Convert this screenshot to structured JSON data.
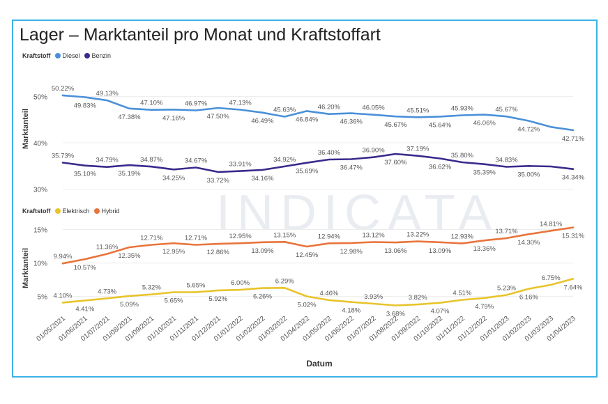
{
  "title": "Lager – Marktanteil pro Monat und Kraftstoffart",
  "xlabel": "Datum",
  "watermark": "INDICATA",
  "chart_data": [
    {
      "type": "line",
      "legend_title": "Kraftstoff",
      "ylabel": "Marktanteil",
      "yticks": [
        "30%",
        "40%",
        "50%"
      ],
      "ylim": [
        28,
        52
      ],
      "categories": [
        "01/05/2021",
        "01/06/2021",
        "01/07/2021",
        "01/08/2021",
        "01/09/2021",
        "01/10/2021",
        "01/11/2021",
        "01/12/2021",
        "01/01/2022",
        "01/02/2022",
        "01/03/2022",
        "01/04/2022",
        "01/05/2022",
        "01/06/2022",
        "01/07/2022",
        "01/08/2022",
        "01/09/2022",
        "01/10/2022",
        "01/11/2022",
        "01/12/2022",
        "01/01/2023",
        "01/02/2023",
        "01/03/2023",
        "01/04/2023"
      ],
      "series": [
        {
          "name": "Diesel",
          "color": "#4a90d9",
          "values": [
            50.22,
            49.83,
            49.13,
            47.38,
            47.1,
            47.16,
            46.97,
            47.5,
            47.13,
            46.49,
            45.63,
            46.84,
            46.2,
            46.36,
            46.05,
            45.67,
            45.51,
            45.64,
            45.93,
            46.06,
            45.67,
            44.72,
            43.4,
            42.71
          ],
          "labels": [
            "50.22%",
            "49.83%",
            "49.13%",
            "47.38%",
            "47.10%",
            "47.16%",
            "46.97%",
            "47.50%",
            "47.13%",
            "46.49%",
            "45.63%",
            "46.84%",
            "46.20%",
            "46.36%",
            "46.05%",
            "45.67%",
            "45.51%",
            "45.64%",
            "45.93%",
            "46.06%",
            "45.67%",
            "44.72%",
            "",
            "42.71%"
          ]
        },
        {
          "name": "Benzin",
          "color": "#3a2a8c",
          "values": [
            35.73,
            35.1,
            34.79,
            35.19,
            34.87,
            34.25,
            34.67,
            33.72,
            33.91,
            34.16,
            34.92,
            35.69,
            36.4,
            36.47,
            36.9,
            37.6,
            37.19,
            36.62,
            35.8,
            35.39,
            34.83,
            35.0,
            34.9,
            34.34
          ],
          "labels": [
            "35.73%",
            "35.10%",
            "34.79%",
            "35.19%",
            "34.87%",
            "34.25%",
            "34.67%",
            "33.72%",
            "33.91%",
            "34.16%",
            "34.92%",
            "35.69%",
            "36.40%",
            "36.47%",
            "36.90%",
            "37.60%",
            "37.19%",
            "36.62%",
            "35.80%",
            "35.39%",
            "34.83%",
            "35.00%",
            "",
            "34.34%"
          ]
        }
      ]
    },
    {
      "type": "line",
      "legend_title": "Kraftstoff",
      "ylabel": "Marktanteil",
      "yticks": [
        "5%",
        "10%",
        "15%"
      ],
      "ylim": [
        3,
        16.5
      ],
      "categories": [
        "01/05/2021",
        "01/06/2021",
        "01/07/2021",
        "01/08/2021",
        "01/09/2021",
        "01/10/2021",
        "01/11/2021",
        "01/12/2021",
        "01/01/2022",
        "01/02/2022",
        "01/03/2022",
        "01/04/2022",
        "01/05/2022",
        "01/06/2022",
        "01/07/2022",
        "01/08/2022",
        "01/09/2022",
        "01/10/2022",
        "01/11/2022",
        "01/12/2022",
        "01/01/2023",
        "01/02/2023",
        "01/03/2023",
        "01/04/2023"
      ],
      "series": [
        {
          "name": "Elektrisch",
          "color": "#e8c42a",
          "values": [
            4.1,
            4.41,
            4.73,
            5.09,
            5.32,
            5.65,
            5.65,
            5.92,
            6.0,
            6.26,
            6.29,
            5.02,
            4.46,
            4.18,
            3.93,
            3.68,
            3.82,
            4.07,
            4.51,
            4.79,
            5.23,
            6.16,
            6.75,
            7.64
          ],
          "labels": [
            "4.10%",
            "4.41%",
            "4.73%",
            "5.09%",
            "5.32%",
            "5.65%",
            "5.65%",
            "5.92%",
            "6.00%",
            "6.26%",
            "6.29%",
            "5.02%",
            "4.46%",
            "4.18%",
            "3.93%",
            "3.68%",
            "3.82%",
            "4.07%",
            "4.51%",
            "4.79%",
            "5.23%",
            "6.16%",
            "6.75%",
            "7.64%"
          ]
        },
        {
          "name": "Hybrid",
          "color": "#e8743b",
          "values": [
            9.94,
            10.57,
            11.36,
            12.35,
            12.71,
            12.95,
            12.71,
            12.86,
            12.95,
            13.09,
            13.15,
            12.45,
            12.94,
            12.98,
            13.12,
            13.06,
            13.22,
            13.09,
            12.93,
            13.36,
            13.71,
            14.3,
            14.81,
            15.31
          ],
          "labels": [
            "9.94%",
            "10.57%",
            "11.36%",
            "12.35%",
            "12.71%",
            "12.95%",
            "12.71%",
            "12.86%",
            "12.95%",
            "13.09%",
            "13.15%",
            "12.45%",
            "12.94%",
            "12.98%",
            "13.12%",
            "13.06%",
            "13.22%",
            "13.09%",
            "12.93%",
            "13.36%",
            "13.71%",
            "14.30%",
            "14.81%",
            "15.31%"
          ]
        }
      ]
    }
  ]
}
